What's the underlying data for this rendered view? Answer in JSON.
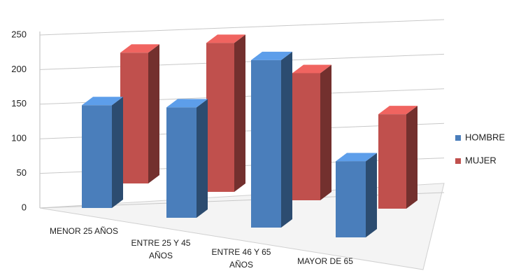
{
  "chart_data": {
    "type": "bar3d",
    "categories": [
      "MENOR 25 AÑOS",
      "ENTRE 25 Y 45 AÑOS",
      "ENTRE 46 Y 65 AÑOS",
      "MAYOR DE 65"
    ],
    "series": [
      {
        "name": "HOMBRE",
        "color": "#4a7ebb",
        "values": [
          135,
          145,
          220,
          100
        ]
      },
      {
        "name": "MUJER",
        "color": "#c0504d",
        "values": [
          180,
          205,
          175,
          130
        ]
      }
    ],
    "ylim": [
      0,
      250
    ],
    "yticks": [
      0,
      50,
      100,
      150,
      200,
      250
    ],
    "grid": true,
    "legend": "right"
  }
}
